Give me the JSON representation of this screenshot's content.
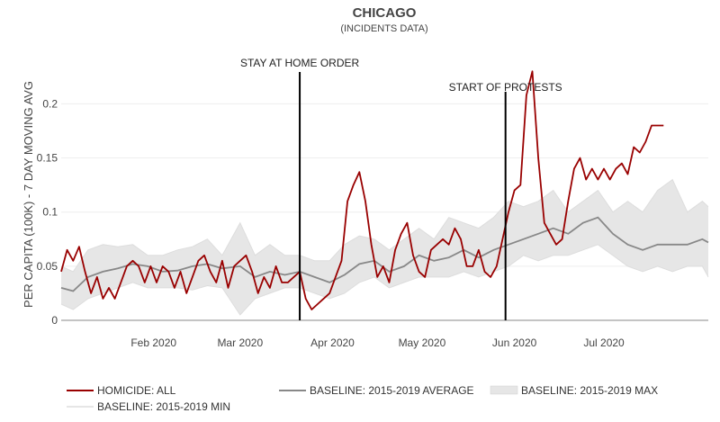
{
  "chart_data": {
    "type": "line",
    "title": "CHICAGO",
    "subtitle": "(INCIDENTS DATA)",
    "ylabel": "PER CAPITA (100K) - 7 DAY MOVING AVG",
    "xlabel": "",
    "ylim": [
      0,
      0.23
    ],
    "xlim": [
      "2020-01-01",
      "2020-08-05"
    ],
    "y_ticks": [
      0,
      0.05,
      0.1,
      0.15,
      0.2
    ],
    "y_tick_labels": [
      "0",
      "0.05",
      "0.1",
      "0.15",
      "0.2"
    ],
    "x_ticks": [
      "2020-02-01",
      "2020-03-01",
      "2020-04-01",
      "2020-05-01",
      "2020-06-01",
      "2020-07-01"
    ],
    "x_tick_labels": [
      "Feb 2020",
      "Mar 2020",
      "Apr 2020",
      "May 2020",
      "Jun 2020",
      "Jul 2020"
    ],
    "grid": true,
    "legend_position": "bottom",
    "annotations": [
      {
        "x": "2020-03-21",
        "label": "STAY AT HOME ORDER"
      },
      {
        "x": "2020-05-29",
        "label": "START OF PROTESTS"
      }
    ],
    "colors": {
      "homicide": "#990000",
      "average": "#888888",
      "band": "#e6e6e6",
      "band_edge": "#dddddd",
      "vline": "#000000",
      "grid": "#eeeeee"
    },
    "series": [
      {
        "name": "HOMICIDE: ALL",
        "x": [
          "2020-01-01",
          "2020-01-03",
          "2020-01-05",
          "2020-01-07",
          "2020-01-09",
          "2020-01-11",
          "2020-01-13",
          "2020-01-15",
          "2020-01-17",
          "2020-01-19",
          "2020-01-21",
          "2020-01-23",
          "2020-01-25",
          "2020-01-27",
          "2020-01-29",
          "2020-01-31",
          "2020-02-02",
          "2020-02-04",
          "2020-02-06",
          "2020-02-08",
          "2020-02-10",
          "2020-02-12",
          "2020-02-14",
          "2020-02-16",
          "2020-02-18",
          "2020-02-20",
          "2020-02-22",
          "2020-02-24",
          "2020-02-26",
          "2020-02-28",
          "2020-03-01",
          "2020-03-03",
          "2020-03-05",
          "2020-03-07",
          "2020-03-09",
          "2020-03-11",
          "2020-03-13",
          "2020-03-15",
          "2020-03-17",
          "2020-03-19",
          "2020-03-21",
          "2020-03-23",
          "2020-03-25",
          "2020-03-27",
          "2020-03-29",
          "2020-03-31",
          "2020-04-02",
          "2020-04-04",
          "2020-04-06",
          "2020-04-08",
          "2020-04-10",
          "2020-04-12",
          "2020-04-14",
          "2020-04-16",
          "2020-04-18",
          "2020-04-20",
          "2020-04-22",
          "2020-04-24",
          "2020-04-26",
          "2020-04-28",
          "2020-04-30",
          "2020-05-02",
          "2020-05-04",
          "2020-05-06",
          "2020-05-08",
          "2020-05-10",
          "2020-05-12",
          "2020-05-14",
          "2020-05-16",
          "2020-05-18",
          "2020-05-20",
          "2020-05-22",
          "2020-05-24",
          "2020-05-26",
          "2020-05-28",
          "2020-05-30",
          "2020-06-01",
          "2020-06-03",
          "2020-06-05",
          "2020-06-07",
          "2020-06-09",
          "2020-06-11",
          "2020-06-13",
          "2020-06-15",
          "2020-06-17",
          "2020-06-19",
          "2020-06-21",
          "2020-06-23",
          "2020-06-25",
          "2020-06-27",
          "2020-06-29",
          "2020-07-01",
          "2020-07-03",
          "2020-07-05",
          "2020-07-07",
          "2020-07-09",
          "2020-07-11",
          "2020-07-13",
          "2020-07-15",
          "2020-07-17",
          "2020-07-19",
          "2020-07-21"
        ],
        "values": [
          0.045,
          0.065,
          0.055,
          0.068,
          0.045,
          0.025,
          0.04,
          0.02,
          0.03,
          0.02,
          0.035,
          0.05,
          0.055,
          0.05,
          0.035,
          0.05,
          0.035,
          0.05,
          0.045,
          0.03,
          0.045,
          0.025,
          0.04,
          0.055,
          0.06,
          0.045,
          0.035,
          0.055,
          0.03,
          0.05,
          0.055,
          0.06,
          0.045,
          0.025,
          0.04,
          0.03,
          0.05,
          0.035,
          0.035,
          0.04,
          0.045,
          0.02,
          0.01,
          0.015,
          0.02,
          0.025,
          0.04,
          0.055,
          0.11,
          0.125,
          0.137,
          0.11,
          0.07,
          0.04,
          0.05,
          0.035,
          0.065,
          0.08,
          0.09,
          0.06,
          0.045,
          0.04,
          0.065,
          0.07,
          0.075,
          0.07,
          0.085,
          0.075,
          0.05,
          0.05,
          0.065,
          0.045,
          0.04,
          0.05,
          0.075,
          0.1,
          0.12,
          0.125,
          0.208,
          0.23,
          0.15,
          0.09,
          0.08,
          0.07,
          0.075,
          0.11,
          0.14,
          0.15,
          0.13,
          0.14,
          0.13,
          0.14,
          0.13,
          0.14,
          0.145,
          0.135,
          0.16,
          0.155,
          0.165,
          0.18,
          0.18,
          0.18
        ]
      },
      {
        "name": "BASELINE: 2015-2019 AVERAGE",
        "x": [
          "2020-01-01",
          "2020-01-05",
          "2020-01-10",
          "2020-01-15",
          "2020-01-20",
          "2020-01-25",
          "2020-01-30",
          "2020-02-04",
          "2020-02-09",
          "2020-02-14",
          "2020-02-19",
          "2020-02-24",
          "2020-03-01",
          "2020-03-06",
          "2020-03-11",
          "2020-03-16",
          "2020-03-21",
          "2020-03-26",
          "2020-03-31",
          "2020-04-05",
          "2020-04-10",
          "2020-04-15",
          "2020-04-20",
          "2020-04-25",
          "2020-04-30",
          "2020-05-05",
          "2020-05-10",
          "2020-05-15",
          "2020-05-20",
          "2020-05-25",
          "2020-05-30",
          "2020-06-04",
          "2020-06-09",
          "2020-06-14",
          "2020-06-19",
          "2020-06-24",
          "2020-06-29",
          "2020-07-04",
          "2020-07-09",
          "2020-07-14",
          "2020-07-19",
          "2020-07-24",
          "2020-07-29",
          "2020-08-03",
          "2020-08-05"
        ],
        "values": [
          0.03,
          0.027,
          0.04,
          0.045,
          0.048,
          0.052,
          0.05,
          0.045,
          0.046,
          0.05,
          0.052,
          0.048,
          0.05,
          0.04,
          0.045,
          0.042,
          0.045,
          0.04,
          0.035,
          0.042,
          0.052,
          0.055,
          0.045,
          0.05,
          0.06,
          0.055,
          0.058,
          0.065,
          0.058,
          0.065,
          0.07,
          0.075,
          0.08,
          0.085,
          0.08,
          0.09,
          0.095,
          0.08,
          0.07,
          0.065,
          0.07,
          0.07,
          0.07,
          0.075,
          0.072
        ]
      },
      {
        "name": "BASELINE: 2015-2019 MAX",
        "x": [
          "2020-01-01",
          "2020-01-05",
          "2020-01-10",
          "2020-01-15",
          "2020-01-20",
          "2020-01-25",
          "2020-01-30",
          "2020-02-04",
          "2020-02-09",
          "2020-02-14",
          "2020-02-19",
          "2020-02-24",
          "2020-03-01",
          "2020-03-06",
          "2020-03-11",
          "2020-03-16",
          "2020-03-21",
          "2020-03-26",
          "2020-03-31",
          "2020-04-05",
          "2020-04-10",
          "2020-04-15",
          "2020-04-20",
          "2020-04-25",
          "2020-04-30",
          "2020-05-05",
          "2020-05-10",
          "2020-05-15",
          "2020-05-20",
          "2020-05-25",
          "2020-05-30",
          "2020-06-04",
          "2020-06-09",
          "2020-06-14",
          "2020-06-19",
          "2020-06-24",
          "2020-06-29",
          "2020-07-04",
          "2020-07-09",
          "2020-07-14",
          "2020-07-19",
          "2020-07-24",
          "2020-07-29",
          "2020-08-03",
          "2020-08-05"
        ],
        "values": [
          0.05,
          0.045,
          0.065,
          0.07,
          0.068,
          0.07,
          0.06,
          0.06,
          0.065,
          0.068,
          0.075,
          0.06,
          0.09,
          0.06,
          0.07,
          0.06,
          0.06,
          0.055,
          0.055,
          0.07,
          0.078,
          0.075,
          0.065,
          0.075,
          0.085,
          0.075,
          0.095,
          0.09,
          0.085,
          0.095,
          0.11,
          0.105,
          0.11,
          0.12,
          0.1,
          0.11,
          0.12,
          0.1,
          0.11,
          0.1,
          0.12,
          0.13,
          0.1,
          0.11,
          0.105
        ]
      },
      {
        "name": "BASELINE: 2015-2019 MIN",
        "x": [
          "2020-01-01",
          "2020-01-05",
          "2020-01-10",
          "2020-01-15",
          "2020-01-20",
          "2020-01-25",
          "2020-01-30",
          "2020-02-04",
          "2020-02-09",
          "2020-02-14",
          "2020-02-19",
          "2020-02-24",
          "2020-03-01",
          "2020-03-06",
          "2020-03-11",
          "2020-03-16",
          "2020-03-21",
          "2020-03-26",
          "2020-03-31",
          "2020-04-05",
          "2020-04-10",
          "2020-04-15",
          "2020-04-20",
          "2020-04-25",
          "2020-04-30",
          "2020-05-05",
          "2020-05-10",
          "2020-05-15",
          "2020-05-20",
          "2020-05-25",
          "2020-05-30",
          "2020-06-04",
          "2020-06-09",
          "2020-06-14",
          "2020-06-19",
          "2020-06-24",
          "2020-06-29",
          "2020-07-04",
          "2020-07-09",
          "2020-07-14",
          "2020-07-19",
          "2020-07-24",
          "2020-07-29",
          "2020-08-03",
          "2020-08-05"
        ],
        "values": [
          0.015,
          0.01,
          0.02,
          0.025,
          0.03,
          0.035,
          0.03,
          0.03,
          0.03,
          0.028,
          0.032,
          0.03,
          0.005,
          0.02,
          0.025,
          0.03,
          0.03,
          0.025,
          0.02,
          0.025,
          0.035,
          0.04,
          0.03,
          0.035,
          0.04,
          0.04,
          0.04,
          0.045,
          0.04,
          0.045,
          0.05,
          0.06,
          0.055,
          0.06,
          0.06,
          0.065,
          0.07,
          0.06,
          0.05,
          0.045,
          0.05,
          0.045,
          0.05,
          0.05,
          0.04
        ]
      }
    ]
  },
  "legend": {
    "items": [
      {
        "label": "HOMICIDE: ALL",
        "kind": "line",
        "color": "#990000"
      },
      {
        "label": "BASELINE: 2015-2019 AVERAGE",
        "kind": "line",
        "color": "#888888"
      },
      {
        "label": "BASELINE: 2015-2019 MAX",
        "kind": "band",
        "color": "#e6e6e6"
      },
      {
        "label": "BASELINE: 2015-2019 MIN",
        "kind": "line",
        "color": "#dddddd"
      }
    ]
  }
}
